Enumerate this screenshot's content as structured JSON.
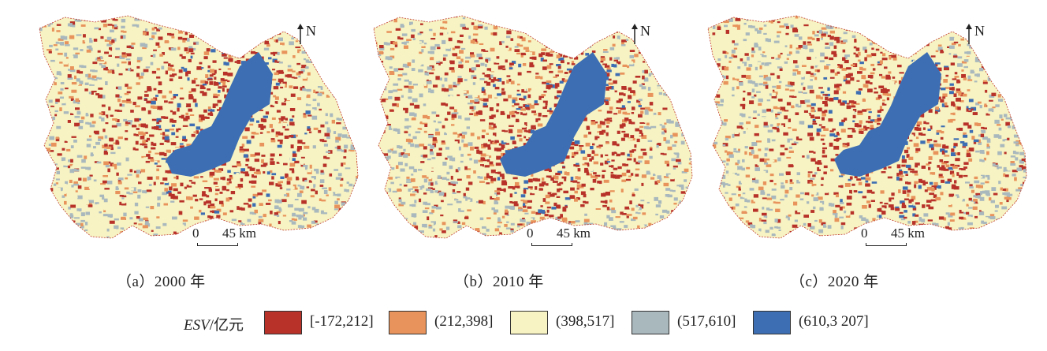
{
  "panels": [
    {
      "caption": "（a）2000 年"
    },
    {
      "caption": "（b）2010 年"
    },
    {
      "caption": "（c）2020 年"
    }
  ],
  "north_label": "N",
  "scale": {
    "zero": "0",
    "max": "45 km"
  },
  "legend": {
    "title_italic": "ESV",
    "title_unit": "/亿元",
    "items": [
      {
        "label": "[-172,212]",
        "color": "#b8322a"
      },
      {
        "label": "(212,398]",
        "color": "#e8935b"
      },
      {
        "label": "(398,517]",
        "color": "#f7f3c2"
      },
      {
        "label": "(517,610]",
        "color": "#a9b8bd"
      },
      {
        "label": "(610,3 207]",
        "color": "#3d6eb3"
      }
    ]
  }
}
